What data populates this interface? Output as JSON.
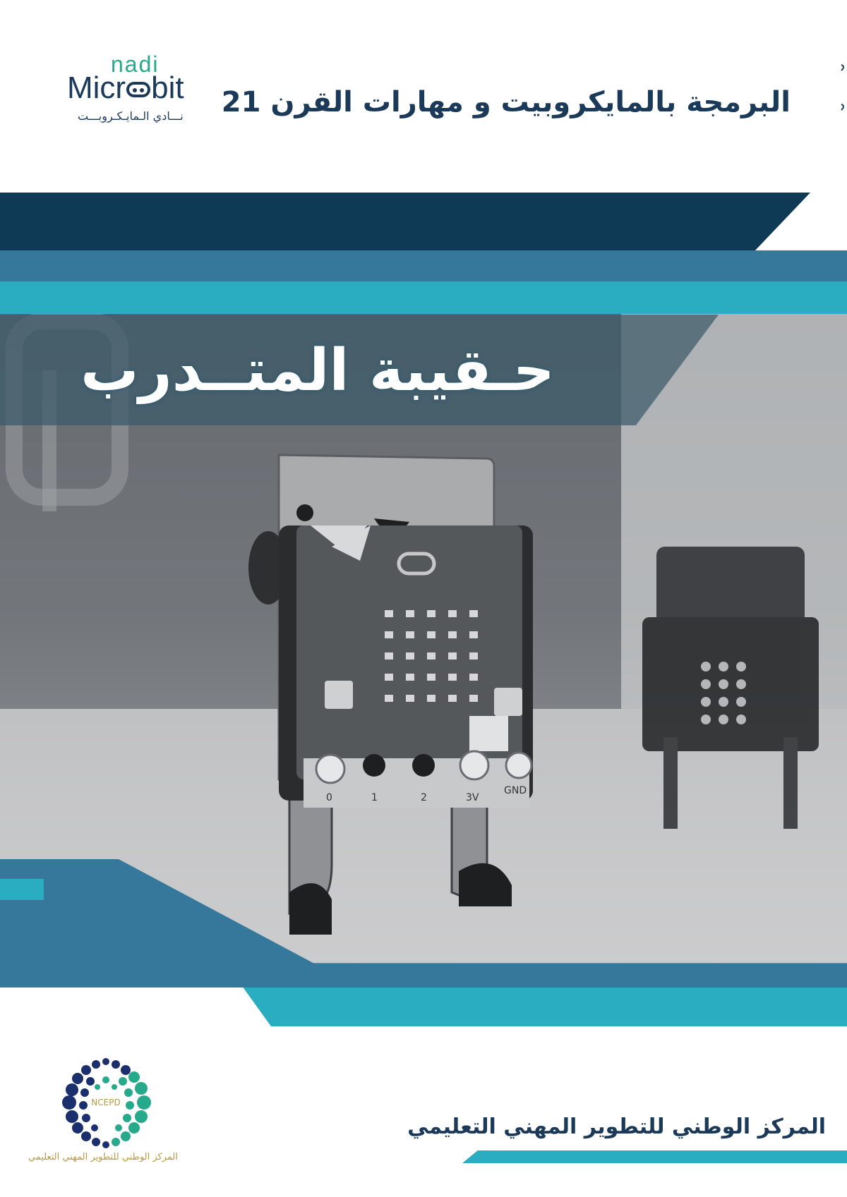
{
  "header": {
    "logo": {
      "top_text": "nadi",
      "main_text_left": "Micr",
      "main_text_right": "bit",
      "arabic_text": "نـــادي الـمايـكـروبـــت",
      "colors": {
        "teal": "#27a98b",
        "navy": "#1b3a5a"
      }
    },
    "title": "البرمجة بالمايكروبيت و مهارات القرن 21"
  },
  "cover": {
    "main_title": "حـقيبة المتــدرب",
    "photo_icon": "microbit-robot-photo",
    "board_labels": [
      "0",
      "1",
      "2",
      "3V",
      "GND"
    ]
  },
  "footer": {
    "org_name": "المركز الوطني للتطوير المهني التعليمي",
    "logo_center_text": "NCEPD",
    "logo_caption": "المركز الوطني للتطوير المهني التعليمي"
  },
  "colors": {
    "dark_navy": "#0e3a55",
    "steel_blue": "#36789c",
    "teal": "#2aadc1",
    "text_navy": "#1b3a5a",
    "gold": "#b99a43"
  }
}
